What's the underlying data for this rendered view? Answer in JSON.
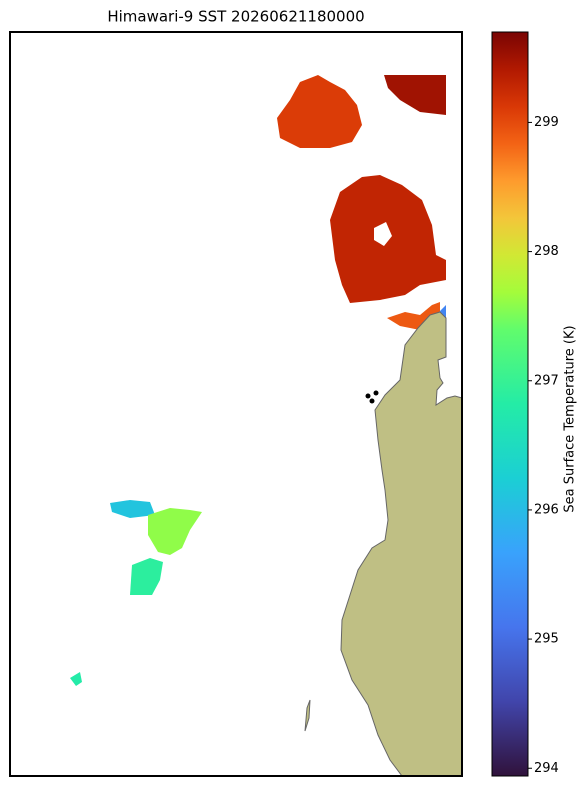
{
  "chart_data": {
    "type": "map",
    "title": "Himawari-9 SST 20260621180000",
    "colorbar_label": "Sea Surface Temperature (K)",
    "clim": [
      293.94,
      299.7
    ],
    "cticks": [
      294,
      295,
      296,
      297,
      298,
      299
    ],
    "land_color": "#bfbf84",
    "regions": {
      "values": [
        299.1,
        299.5,
        299.3,
        298.9,
        296.1,
        297.6,
        296.9,
        296.8,
        295.3
      ]
    }
  }
}
